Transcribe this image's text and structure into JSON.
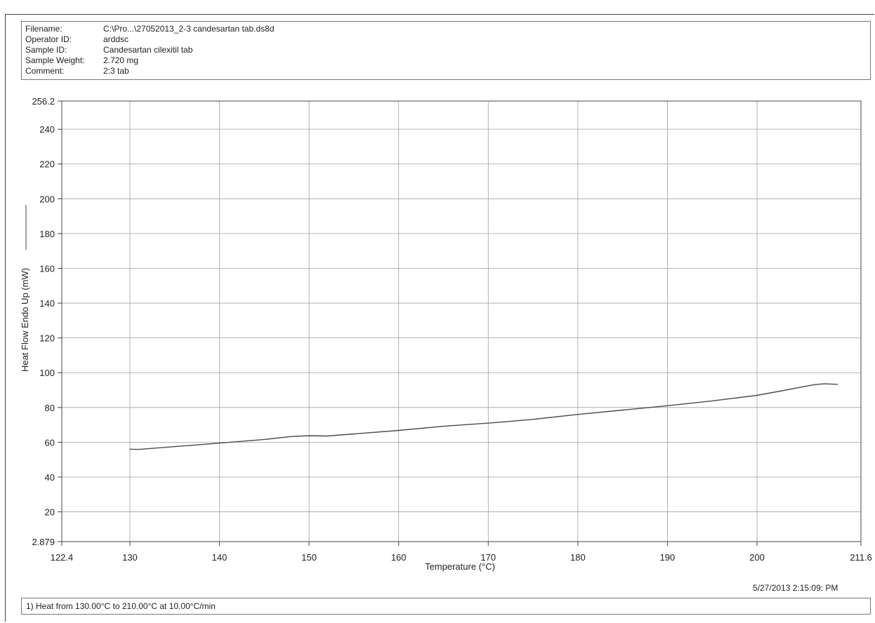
{
  "header": {
    "rows": [
      {
        "label": "Filename:",
        "value": "C:\\Pro...\\27052013_2-3 candesartan tab.ds8d"
      },
      {
        "label": "Operator ID:",
        "value": "arddsc"
      },
      {
        "label": "Sample ID:",
        "value": "Candesartan cilexitil tab"
      },
      {
        "label": "Sample Weight:",
        "value": "2.720 mg"
      },
      {
        "label": "Comment:",
        "value": "2:3 tab"
      }
    ]
  },
  "timestamp": "5/27/2013 2:15:09: PM",
  "footer": {
    "method": "1) Heat from 130.00°C to 210.00°C at 10.00°C/min"
  },
  "colors": {
    "trace": "#4a4a4a",
    "axis": "#444444",
    "grid": "#a0a0a0",
    "text": "#222222"
  },
  "chart_data": {
    "type": "line",
    "title": "",
    "xlabel": "Temperature (°C)",
    "ylabel": "Heat Flow Endo Up (mW)",
    "xlim": [
      122.4,
      211.6
    ],
    "ylim": [
      2.879,
      256.2
    ],
    "x_ticks": [
      "122.4",
      "130",
      "140",
      "150",
      "160",
      "170",
      "180",
      "190",
      "200",
      "211.6"
    ],
    "y_ticks": [
      "2.879",
      "20",
      "40",
      "60",
      "80",
      "100",
      "120",
      "140",
      "160",
      "180",
      "200",
      "220",
      "240",
      "256.2"
    ],
    "grid": true,
    "series": [
      {
        "x": [
          130,
          131,
          135,
          140,
          145,
          148,
          150,
          152,
          155,
          160,
          165,
          170,
          172,
          175,
          180,
          185,
          190,
          195,
          200,
          203,
          205,
          206.5,
          207.5,
          208.5,
          209
        ],
        "y": [
          56,
          55.9,
          57.5,
          59.5,
          61.6,
          63.3,
          63.8,
          63.6,
          64.8,
          66.8,
          69.2,
          71,
          71.8,
          73.2,
          76,
          78.5,
          81,
          83.8,
          87,
          89.8,
          91.8,
          93.2,
          93.6,
          93.4,
          93.3
        ]
      }
    ]
  }
}
